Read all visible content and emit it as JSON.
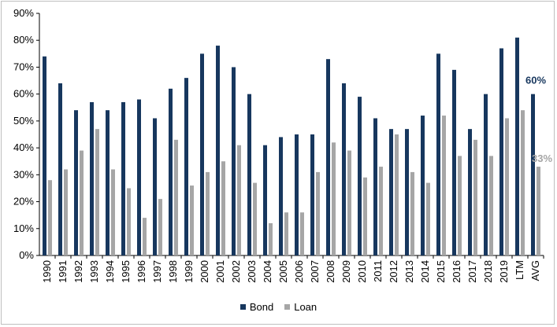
{
  "chart_data": {
    "type": "bar",
    "title": "",
    "xlabel": "",
    "ylabel": "",
    "ylim": [
      0,
      90
    ],
    "yticks": [
      "0%",
      "10%",
      "20%",
      "30%",
      "40%",
      "50%",
      "60%",
      "70%",
      "80%",
      "90%"
    ],
    "categories": [
      "1990",
      "1991",
      "1992",
      "1993",
      "1994",
      "1995",
      "1996",
      "1997",
      "1998",
      "1999",
      "2000",
      "2001",
      "2002",
      "2003",
      "2004",
      "2005",
      "2006",
      "2007",
      "2008",
      "2009",
      "2010",
      "2011",
      "2012",
      "2013",
      "2014",
      "2015",
      "2016",
      "2017",
      "2018",
      "2019",
      "LTM",
      "AVG"
    ],
    "series": [
      {
        "name": "Bond",
        "color": "#17375e",
        "values": [
          74,
          64,
          54,
          57,
          54,
          57,
          58,
          51,
          62,
          66,
          75,
          78,
          70,
          60,
          41,
          44,
          45,
          45,
          73,
          64,
          59,
          51,
          47,
          47,
          52,
          75,
          69,
          47,
          60,
          77,
          81,
          60
        ]
      },
      {
        "name": "Loan",
        "color": "#a6a6a6",
        "values": [
          28,
          32,
          39,
          47,
          32,
          25,
          14,
          21,
          43,
          26,
          31,
          35,
          41,
          27,
          12,
          16,
          16,
          31,
          42,
          39,
          29,
          33,
          45,
          31,
          27,
          52,
          37,
          43,
          37,
          51,
          54,
          33
        ]
      }
    ],
    "annotations": [
      {
        "text": "60%",
        "series": "Bond",
        "category": "AVG",
        "color": "#17375e"
      },
      {
        "text": "33%",
        "series": "Loan",
        "category": "AVG",
        "color": "#a6a6a6"
      }
    ],
    "grid": false,
    "legend_position": "bottom"
  },
  "legend": {
    "bond_label": "Bond",
    "loan_label": "Loan"
  }
}
